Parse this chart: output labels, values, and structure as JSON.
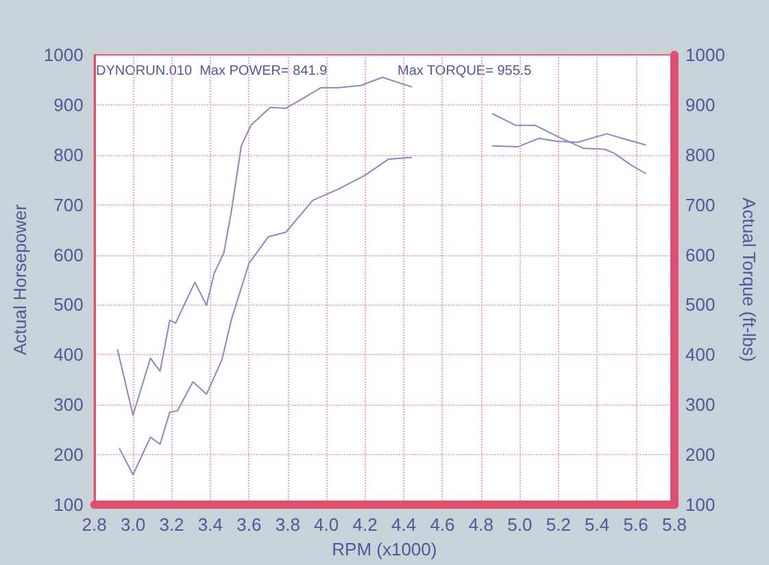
{
  "chart_data": {
    "type": "line",
    "xlabel": "RPM (x1000)",
    "ylabel": "Actual Horsepower",
    "y2label": "Actual Torque (ft-lbs)",
    "annotations": [
      "DYNORUN.010  Max POWER= 841.9",
      "Max TORQUE= 955.5"
    ],
    "series": [
      {
        "color": "#8a86c8",
        "x": [
          2.93,
          3.0,
          3.09,
          3.14,
          3.19,
          3.23,
          3.31,
          3.38,
          3.46,
          3.51,
          3.6,
          3.7,
          3.79,
          3.93,
          4.06,
          4.2,
          4.32,
          4.44,
          4.65,
          4.86,
          4.99,
          5.1,
          5.19,
          5.3,
          5.45,
          5.53,
          5.65
        ],
        "values": [
          212,
          160,
          235,
          221,
          285,
          288,
          346,
          321,
          390,
          472,
          583,
          636,
          645,
          709,
          731,
          759,
          791,
          795,
          null,
          818,
          816,
          833,
          827,
          825,
          842,
          833,
          820
        ]
      },
      {
        "color": "#8a86c8",
        "x": [
          2.92,
          3.0,
          3.09,
          3.14,
          3.19,
          3.22,
          3.32,
          3.38,
          3.42,
          3.47,
          3.51,
          3.56,
          3.61,
          3.71,
          3.79,
          3.88,
          3.97,
          4.06,
          4.18,
          4.29,
          4.44,
          4.65,
          4.86,
          4.98,
          5.08,
          5.2,
          5.33,
          5.44,
          5.49,
          5.57,
          5.65
        ],
        "values": [
          410,
          279,
          393,
          367,
          469,
          463,
          545,
          499,
          563,
          604,
          690,
          818,
          859,
          895,
          893,
          913,
          934,
          934,
          939,
          955,
          936,
          null,
          882,
          859,
          859,
          836,
          813,
          811,
          803,
          781,
          763
        ]
      }
    ],
    "xlim": [
      2.8,
      5.8
    ],
    "xticks": [
      {
        "value": 2.8,
        "label": "2.8"
      },
      {
        "value": 3,
        "label": "3.0"
      },
      {
        "value": 3.2,
        "label": "3.2"
      },
      {
        "value": 3.4,
        "label": "3.4"
      },
      {
        "value": 3.6,
        "label": "3.6"
      },
      {
        "value": 3.8,
        "label": "3.8"
      },
      {
        "value": 4,
        "label": "4.0"
      },
      {
        "value": 4.2,
        "label": "4.2"
      },
      {
        "value": 4.4,
        "label": "4.4"
      },
      {
        "value": 4.6,
        "label": "4.6"
      },
      {
        "value": 4.8,
        "label": "4.8"
      },
      {
        "value": 5,
        "label": "5.0"
      },
      {
        "value": 5.2,
        "label": "5.2"
      },
      {
        "value": 5.4,
        "label": "5.4"
      },
      {
        "value": 5.6,
        "label": "5.6"
      },
      {
        "value": 5.8,
        "label": "5.8"
      }
    ],
    "ylim": [
      100,
      1000
    ],
    "yticks": [
      100,
      200,
      300,
      400,
      500,
      600,
      700,
      800,
      900,
      1000
    ],
    "y2lim": [
      100,
      1000
    ],
    "y2ticks": [
      100,
      200,
      300,
      400,
      500,
      600,
      700,
      800,
      900,
      1000
    ],
    "grid": true,
    "marker": "none",
    "line_style": "solid"
  }
}
